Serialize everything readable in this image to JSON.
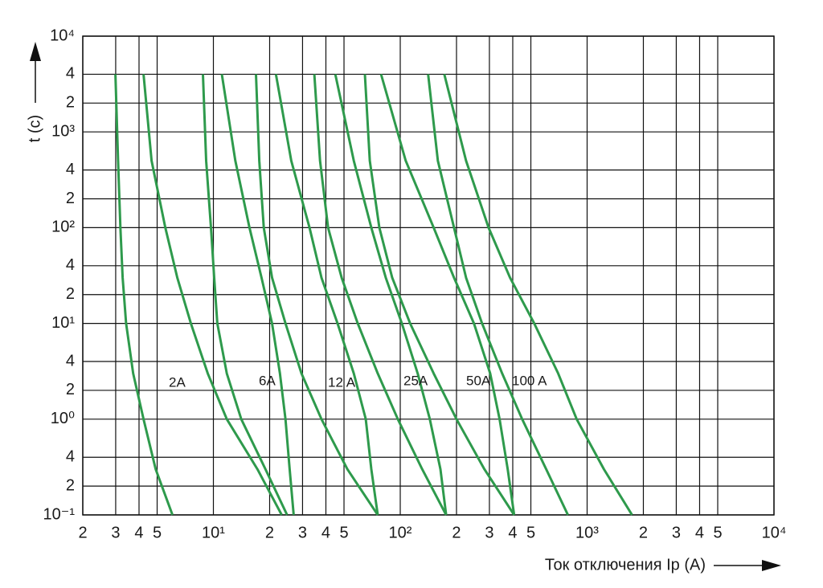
{
  "chart_data": {
    "type": "line",
    "log_x": true,
    "log_y": true,
    "grid": true,
    "ylabel": "t (c)",
    "xlabel": "Ток отключения Ip (A)",
    "xlim": [
      2,
      10000
    ],
    "ylim": [
      0.1,
      10000
    ],
    "xticks": [
      2,
      3,
      4,
      5,
      {
        "value": 10,
        "label": "10¹"
      },
      {
        "value": 20,
        "label": "2"
      },
      {
        "value": 30,
        "label": "3"
      },
      {
        "value": 40,
        "label": "4"
      },
      {
        "value": 50,
        "label": "5"
      },
      {
        "value": 100,
        "label": "10²"
      },
      {
        "value": 200,
        "label": "2"
      },
      {
        "value": 300,
        "label": "3"
      },
      {
        "value": 400,
        "label": "4"
      },
      {
        "value": 500,
        "label": "5"
      },
      {
        "value": 1000,
        "label": "10³"
      },
      {
        "value": 2000,
        "label": "2"
      },
      {
        "value": 3000,
        "label": "3"
      },
      {
        "value": 4000,
        "label": "4"
      },
      {
        "value": 5000,
        "label": "5"
      },
      {
        "value": 10000,
        "label": "10⁴"
      }
    ],
    "yticks": [
      {
        "value": 10000,
        "label": "10⁴"
      },
      {
        "value": 4000,
        "label": "4"
      },
      {
        "value": 2000,
        "label": "2"
      },
      {
        "value": 1000,
        "label": "10³"
      },
      {
        "value": 400,
        "label": "4"
      },
      {
        "value": 200,
        "label": "2"
      },
      {
        "value": 100,
        "label": "10²"
      },
      {
        "value": 40,
        "label": "4"
      },
      {
        "value": 20,
        "label": "2"
      },
      {
        "value": 10,
        "label": "10¹"
      },
      4,
      2,
      {
        "value": 1,
        "label": "10⁰"
      },
      {
        "value": 0.4,
        "label": "4"
      },
      {
        "value": 0.2,
        "label": "2"
      },
      {
        "value": 0.1,
        "label": "10⁻¹"
      }
    ],
    "annotations": [
      "2A",
      "6A",
      "12 A",
      "25A",
      "50A",
      "100 A"
    ],
    "series": [
      {
        "color": "#2e9a4c",
        "x": [
          2.99,
          3.09,
          3.18,
          3.27,
          3.41,
          3.72,
          4.23,
          4.91,
          6.04
        ],
        "values": [
          4000,
          500,
          100,
          30,
          10,
          3,
          1,
          0.3,
          0.1
        ]
      },
      {
        "color": "#2e9a4c",
        "x": [
          4.23,
          4.67,
          5.53,
          6.41,
          7.58,
          9.33,
          11.8,
          17.2,
          23.2
        ],
        "values": [
          4000,
          500,
          100,
          30,
          10,
          3,
          1,
          0.3,
          0.1
        ]
      },
      {
        "color": "#2e9a4c",
        "x": [
          8.79,
          9.15,
          9.71,
          10.1,
          10.5,
          11.8,
          14.1,
          19.0,
          24.8
        ],
        "values": [
          4000,
          500,
          100,
          30,
          10,
          3,
          1,
          0.3,
          0.1
        ]
      },
      {
        "color": "#2e9a4c",
        "x": [
          11.1,
          13.1,
          15.6,
          18.1,
          20.6,
          22.7,
          24.3,
          25.6,
          26.9
        ],
        "values": [
          4000,
          500,
          100,
          30,
          10,
          3,
          1,
          0.3,
          0.1
        ]
      },
      {
        "color": "#2e9a4c",
        "x": [
          16.9,
          17.6,
          18.6,
          20.6,
          24.3,
          29.6,
          37.9,
          52.1,
          75.8
        ],
        "values": [
          4000,
          500,
          100,
          30,
          10,
          3,
          1,
          0.3,
          0.1
        ]
      },
      {
        "color": "#2e9a4c",
        "x": [
          21.6,
          26.1,
          32.7,
          37.9,
          46.2,
          56.4,
          65.4,
          70.0,
          75.8
        ],
        "values": [
          4000,
          500,
          100,
          30,
          10,
          3,
          1,
          0.3,
          0.1
        ]
      },
      {
        "color": "#2e9a4c",
        "x": [
          34.7,
          37.2,
          41.1,
          48.6,
          59.2,
          75.8,
          97.1,
          131,
          176
        ],
        "values": [
          4000,
          500,
          100,
          30,
          10,
          3,
          1,
          0.3,
          0.1
        ]
      },
      {
        "color": "#2e9a4c",
        "x": [
          44.9,
          56.4,
          70.0,
          83.7,
          102,
          124,
          144,
          164,
          176
        ],
        "values": [
          4000,
          500,
          100,
          30,
          10,
          3,
          1,
          0.3,
          0.1
        ]
      },
      {
        "color": "#2e9a4c",
        "x": [
          64.7,
          68.7,
          77.3,
          90.6,
          113,
          151,
          200,
          282,
          407
        ],
        "values": [
          4000,
          500,
          100,
          30,
          10,
          3,
          1,
          0.3,
          0.1
        ]
      },
      {
        "color": "#2e9a4c",
        "x": [
          78.9,
          107,
          151,
          194,
          248,
          303,
          340,
          376,
          407
        ],
        "values": [
          4000,
          500,
          100,
          30,
          10,
          3,
          1,
          0.3,
          0.1
        ]
      },
      {
        "color": "#2e9a4c",
        "x": [
          141,
          159,
          194,
          225,
          274,
          351,
          449,
          604,
          789
        ],
        "values": [
          4000,
          500,
          100,
          30,
          10,
          3,
          1,
          0.3,
          0.1
        ]
      },
      {
        "color": "#2e9a4c",
        "x": [
          172,
          225,
          297,
          387,
          521,
          700,
          879,
          1230,
          1740
        ],
        "values": [
          4000,
          500,
          100,
          30,
          10,
          3,
          1,
          0.3,
          0.1
        ]
      }
    ]
  }
}
